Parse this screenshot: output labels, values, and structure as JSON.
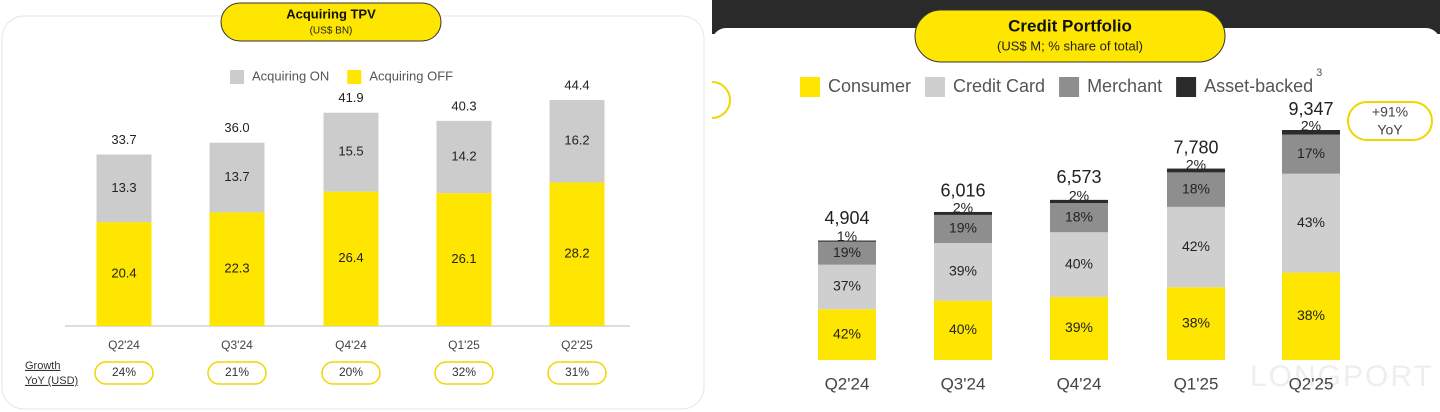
{
  "chart_data": [
    {
      "type": "bar",
      "stacking": "reverse",
      "stack_mode": "absolute",
      "title": "Acquiring TPV",
      "subtitle": "(US$ BN)",
      "categories": [
        "Q2'24",
        "Q3'24",
        "Q4'24",
        "Q1'25",
        "Q2'25"
      ],
      "series": [
        {
          "name": "Acquiring ON",
          "color": "#cccccc",
          "values": [
            13.3,
            13.7,
            15.5,
            14.2,
            16.2
          ],
          "value_labels": [
            "13.3",
            "13.7",
            "15.5",
            "14.2",
            "16.2"
          ]
        },
        {
          "name": "Acquiring OFF",
          "color": "#ffe600",
          "values": [
            20.4,
            22.3,
            26.4,
            26.1,
            28.2
          ],
          "value_labels": [
            "20.4",
            "22.3",
            "26.4",
            "26.1",
            "28.2"
          ]
        }
      ],
      "totals": {
        "values": [
          33.7,
          36.0,
          41.9,
          40.3,
          44.4
        ],
        "value_labels": [
          "33.7",
          "36.0",
          "41.9",
          "40.3",
          "44.4"
        ]
      },
      "growth": {
        "label": [
          "Growth",
          "YoY (USD)"
        ],
        "values": [
          24,
          21,
          20,
          32,
          31
        ],
        "value_labels": [
          "24%",
          "21%",
          "20%",
          "32%",
          "31%"
        ]
      }
    },
    {
      "type": "bar",
      "stacking": "normal",
      "stack_mode": "share",
      "title": "Credit Portfolio",
      "subtitle": "(US$ M; % share of total)",
      "categories": [
        "Q2'24",
        "Q3'24",
        "Q4'24",
        "Q1'25",
        "Q2'25"
      ],
      "series": [
        {
          "name": "Consumer",
          "color": "#ffe600",
          "values": [
            42,
            40,
            39,
            38,
            38
          ],
          "value_labels": [
            "42%",
            "40%",
            "39%",
            "38%",
            "38%"
          ]
        },
        {
          "name": "Credit Card",
          "color": "#cfcfcf",
          "values": [
            37,
            39,
            40,
            42,
            43
          ],
          "value_labels": [
            "37%",
            "39%",
            "40%",
            "42%",
            "43%"
          ]
        },
        {
          "name": "Merchant",
          "color": "#8e8e8e",
          "values": [
            19,
            19,
            18,
            18,
            17
          ],
          "value_labels": [
            "19%",
            "19%",
            "18%",
            "18%",
            "17%"
          ]
        },
        {
          "name": "Asset-backed",
          "color": "#2b2b2b",
          "values": [
            1,
            2,
            2,
            2,
            2
          ],
          "value_labels": [
            "1%",
            "2%",
            "2%",
            "2%",
            "2%"
          ]
        }
      ],
      "legend_footnote": "3",
      "totals": {
        "values": [
          4904,
          6016,
          6573,
          7780,
          9347
        ],
        "value_labels": [
          "4,904",
          "6,016",
          "6,573",
          "7,780",
          "9,347"
        ]
      },
      "annotation": [
        "+91%",
        "YoY"
      ],
      "watermark": "LONGPORT"
    }
  ]
}
